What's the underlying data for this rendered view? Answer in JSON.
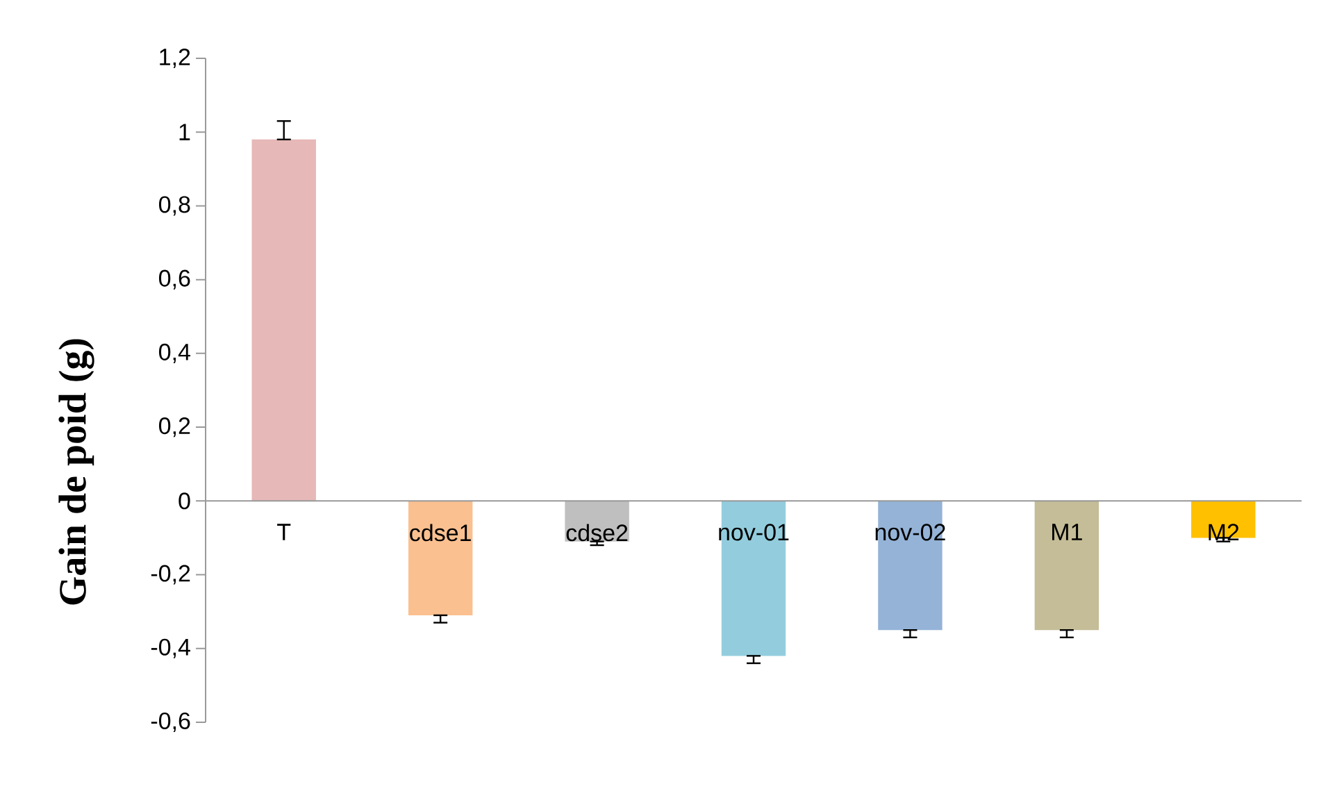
{
  "chart_data": {
    "type": "bar",
    "ylabel": "Gain de poid (g)",
    "categories": [
      "T",
      "cdse1",
      "cdse2",
      "nov-01",
      "nov-02",
      "M1",
      "M2"
    ],
    "values": [
      0.98,
      -0.31,
      -0.11,
      -0.42,
      -0.35,
      -0.35,
      -0.1
    ],
    "colors": [
      "#e6b8b7",
      "#fac090",
      "#bfbfbf",
      "#93cddd",
      "#95b3d7",
      "#c4bd97",
      "#ffc000"
    ],
    "errors": [
      [
        0.98,
        1.03
      ],
      [
        -0.33,
        -0.31
      ],
      [
        -0.12,
        -0.11
      ],
      [
        -0.44,
        -0.42
      ],
      [
        -0.37,
        -0.35
      ],
      [
        -0.37,
        -0.35
      ],
      [
        -0.11,
        -0.1
      ]
    ],
    "ylim": [
      -0.6,
      1.2
    ],
    "yticks": [
      {
        "value": -0.6,
        "label": "-0,6"
      },
      {
        "value": -0.4,
        "label": "-0,4"
      },
      {
        "value": -0.2,
        "label": "-0,2"
      },
      0,
      {
        "value": 0.2,
        "label": "0,2"
      },
      {
        "value": 0.4,
        "label": "0,4"
      },
      {
        "value": 0.6,
        "label": "0,6"
      },
      {
        "value": 0.8,
        "label": "0,8"
      },
      1,
      {
        "value": 1.2,
        "label": "1,2"
      }
    ]
  }
}
